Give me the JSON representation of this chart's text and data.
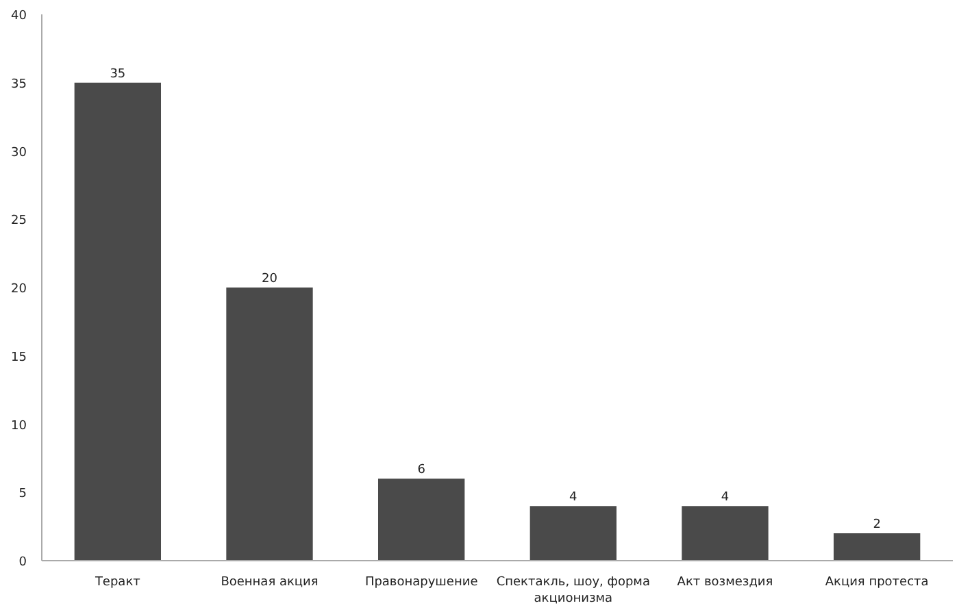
{
  "chart_data": {
    "type": "bar",
    "categories": [
      "Теракт",
      "Военная акция",
      "Правонарушение",
      "Спектакль, шоу, форма акционизма",
      "Акт возмездия",
      "Акция протеста"
    ],
    "values": [
      35,
      20,
      6,
      4,
      4,
      2
    ],
    "color": "#4a4a4a",
    "ylim": [
      0,
      40
    ],
    "yticks": [
      0,
      5,
      10,
      15,
      20,
      25,
      30,
      35,
      40
    ],
    "data_labels": true,
    "grid": false
  }
}
